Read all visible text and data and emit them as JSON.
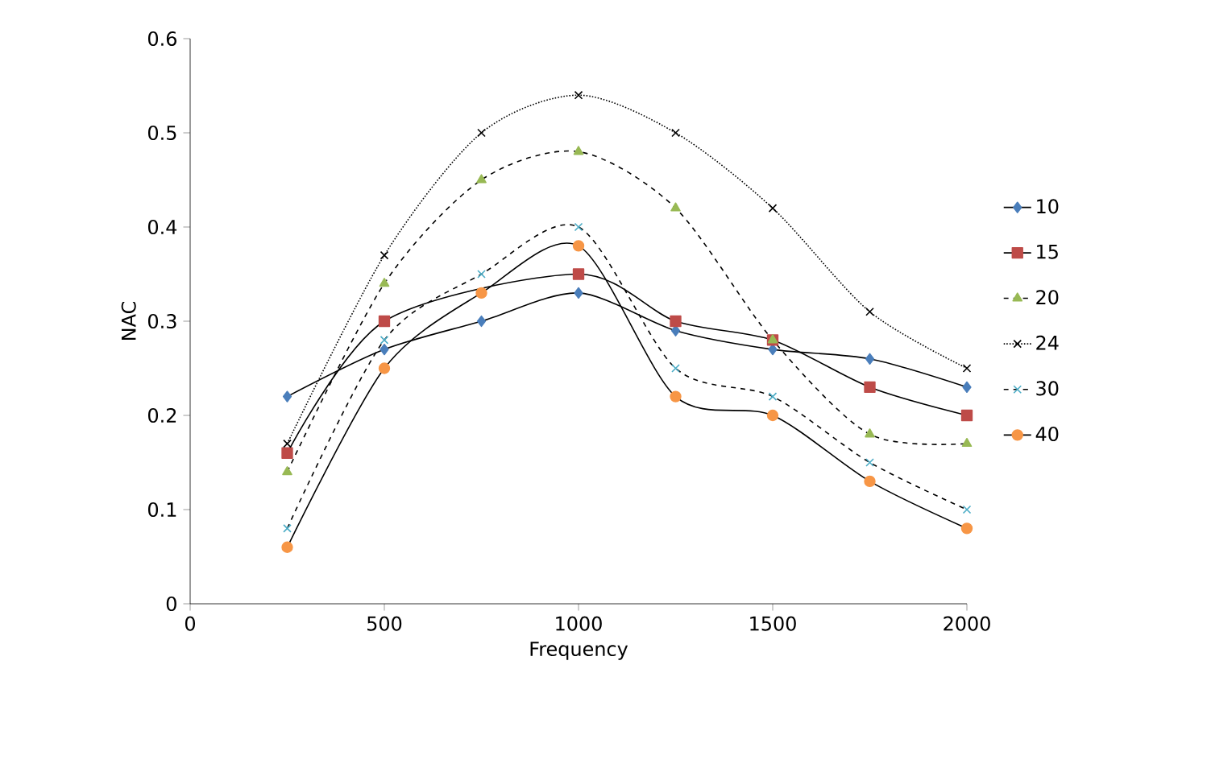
{
  "chart_data": {
    "type": "line",
    "xlabel": "Frequency",
    "ylabel": "NAC",
    "x": [
      250,
      500,
      750,
      1000,
      1250,
      1500,
      1750,
      2000
    ],
    "xlim": [
      0,
      2000
    ],
    "xticks": [
      0,
      500,
      1000,
      1500,
      2000
    ],
    "ylim": [
      0,
      0.6
    ],
    "yticks": [
      0,
      0.1,
      0.2,
      0.3,
      0.4,
      0.5,
      0.6
    ],
    "grid": false,
    "legend": "right",
    "series": [
      {
        "name": "10",
        "color": "#4a7ebb",
        "marker": "diamond",
        "line_style": "solid",
        "values": [
          0.22,
          0.27,
          0.3,
          0.33,
          0.29,
          0.27,
          0.26,
          0.23
        ]
      },
      {
        "name": "15",
        "color": "#be4b48",
        "marker": "square",
        "line_style": "solid",
        "values": [
          0.16,
          0.3,
          null,
          0.35,
          0.3,
          0.28,
          0.23,
          0.2
        ]
      },
      {
        "name": "20",
        "color": "#98b954",
        "marker": "triangle",
        "line_style": "dashed",
        "values": [
          0.14,
          0.34,
          0.45,
          0.48,
          0.42,
          0.28,
          0.18,
          0.17
        ]
      },
      {
        "name": "24",
        "color": "#000000",
        "marker": "cross",
        "line_style": "dotted",
        "values": [
          0.17,
          0.37,
          0.5,
          0.54,
          0.5,
          0.42,
          0.31,
          0.25
        ]
      },
      {
        "name": "30",
        "color": "#4bacc6",
        "marker": "cross",
        "line_style": "dashed",
        "values": [
          0.08,
          0.28,
          0.35,
          0.4,
          0.25,
          0.22,
          0.15,
          0.1
        ]
      },
      {
        "name": "40",
        "color": "#f79646",
        "marker": "circle",
        "line_style": "solid",
        "values": [
          0.06,
          0.25,
          0.33,
          0.38,
          0.22,
          0.2,
          0.13,
          0.08
        ]
      }
    ]
  }
}
